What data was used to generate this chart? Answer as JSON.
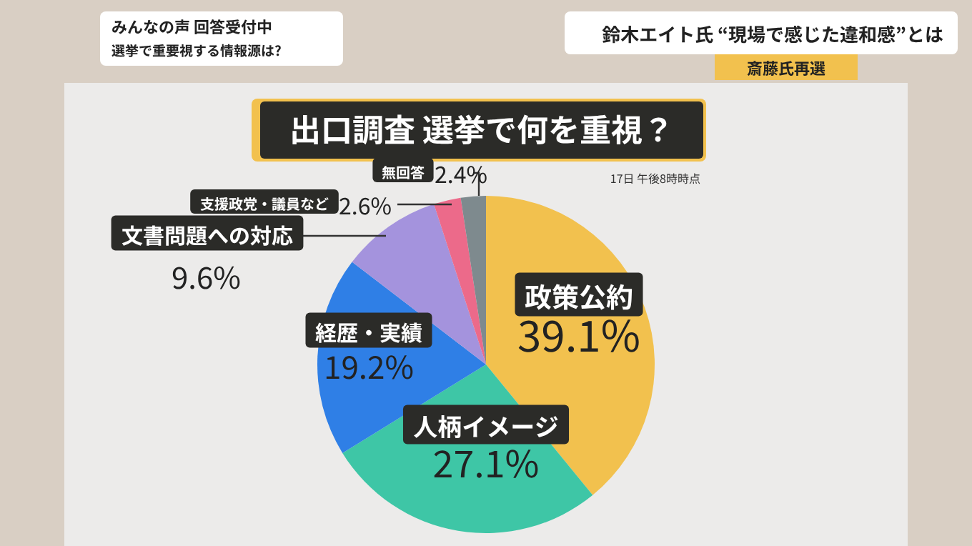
{
  "chart_data": {
    "type": "pie",
    "title": "出口調査 選挙で何を重視？",
    "categories": [
      "政策公約",
      "人柄イメージ",
      "経歴・実績",
      "文書問題への対応",
      "支援政党・議員など",
      "無回答"
    ],
    "values": [
      39.1,
      27.1,
      19.2,
      9.6,
      2.6,
      2.4
    ],
    "value_labels": [
      "39.1%",
      "27.1%",
      "19.2%",
      "9.6%",
      "2.6%",
      "2.4%"
    ],
    "colors": [
      "#f2c14e",
      "#3ec6a6",
      "#2f7fe6",
      "#a493dd",
      "#ec6a8a",
      "#7e8a8e"
    ],
    "annotations": [
      "17日 午後8時時点",
      "みんなの声 回答受付中",
      "選挙で重要視する情報源は?",
      "鈴木エイト氏 “現場で感じた違和感”とは",
      "斎藤氏再選"
    ]
  }
}
